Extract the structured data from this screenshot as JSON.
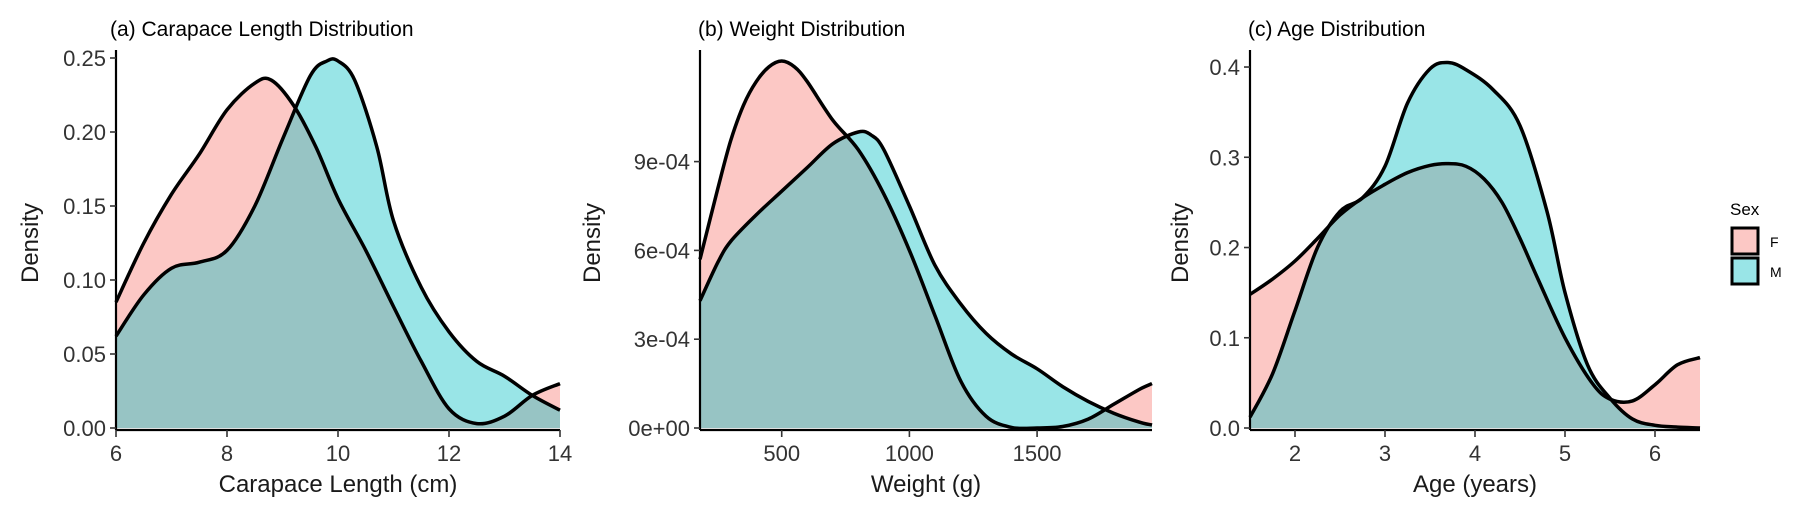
{
  "chart_data": [
    {
      "type": "area",
      "title": "(a) Carapace Length Distribution",
      "xlabel": "Carapace Length (cm)",
      "ylabel": "Density",
      "xlim": [
        6,
        14
      ],
      "ylim": [
        0,
        0.25
      ],
      "xticks": [
        6,
        8,
        10,
        12,
        14
      ],
      "xtick_labels": [
        "6",
        "8",
        "10",
        "12",
        "14"
      ],
      "yticks": [
        0,
        0.05,
        0.1,
        0.15,
        0.2,
        0.25
      ],
      "ytick_labels": [
        "0.00",
        "0.05",
        "0.10",
        "0.15",
        "0.20",
        "0.25"
      ],
      "series": [
        {
          "name": "F",
          "x": [
            6,
            6.5,
            7,
            7.5,
            8,
            8.5,
            8.8,
            9.2,
            9.6,
            10,
            10.5,
            11,
            11.5,
            12,
            12.5,
            13,
            13.5,
            14
          ],
          "values": [
            0.085,
            0.125,
            0.158,
            0.185,
            0.215,
            0.233,
            0.235,
            0.218,
            0.19,
            0.155,
            0.12,
            0.082,
            0.045,
            0.013,
            0.003,
            0.008,
            0.022,
            0.03
          ]
        },
        {
          "name": "M",
          "x": [
            6,
            6.5,
            7,
            7.5,
            8,
            8.5,
            9,
            9.5,
            9.8,
            10,
            10.3,
            10.7,
            11,
            11.5,
            12,
            12.5,
            13,
            13.5,
            14
          ],
          "values": [
            0.062,
            0.09,
            0.108,
            0.112,
            0.12,
            0.15,
            0.195,
            0.238,
            0.248,
            0.248,
            0.235,
            0.19,
            0.14,
            0.095,
            0.065,
            0.045,
            0.035,
            0.022,
            0.012
          ]
        }
      ]
    },
    {
      "type": "area",
      "title": "(b) Weight Distribution",
      "xlabel": "Weight (g)",
      "ylabel": "Density",
      "xlim": [
        180,
        1950
      ],
      "ylim": [
        0,
        0.00125
      ],
      "xticks": [
        500,
        1000,
        1500
      ],
      "xtick_labels": [
        "500",
        "1000",
        "1500"
      ],
      "yticks": [
        0,
        0.0003,
        0.0006,
        0.0009
      ],
      "ytick_labels": [
        "0e+00",
        "3e-04",
        "6e-04",
        "9e-04"
      ],
      "series": [
        {
          "name": "F",
          "x": [
            180,
            250,
            300,
            350,
            400,
            450,
            500,
            550,
            600,
            700,
            800,
            900,
            1000,
            1100,
            1200,
            1300,
            1400,
            1500,
            1600,
            1700,
            1800,
            1900,
            1950
          ],
          "values": [
            0.00057,
            0.00081,
            0.00097,
            0.00109,
            0.00117,
            0.00122,
            0.00124,
            0.00122,
            0.00117,
            0.00104,
            0.00094,
            0.00079,
            0.0006,
            0.00038,
            0.00016,
            4e-05,
            2e-06,
            0,
            5e-06,
            3e-05,
            8e-05,
            0.00013,
            0.00015
          ]
        },
        {
          "name": "M",
          "x": [
            180,
            250,
            300,
            400,
            500,
            600,
            700,
            800,
            850,
            900,
            1000,
            1100,
            1200,
            1300,
            1400,
            1500,
            1600,
            1700,
            1800,
            1900,
            1950
          ],
          "values": [
            0.00043,
            0.00056,
            0.00063,
            0.00072,
            0.0008,
            0.00088,
            0.00096,
            0.001,
            0.00099,
            0.00094,
            0.00075,
            0.00055,
            0.00042,
            0.00032,
            0.00025,
            0.0002,
            0.00014,
            9e-05,
            5e-05,
            2e-05,
            1e-05
          ]
        }
      ]
    },
    {
      "type": "area",
      "title": "(c) Age Distribution",
      "xlabel": "Age (years)",
      "ylabel": "Density",
      "xlim": [
        1.5,
        6.5
      ],
      "ylim": [
        0,
        0.41
      ],
      "xticks": [
        2,
        3,
        4,
        5,
        6
      ],
      "xtick_labels": [
        "2",
        "3",
        "4",
        "5",
        "6"
      ],
      "yticks": [
        0,
        0.1,
        0.2,
        0.3,
        0.4
      ],
      "ytick_labels": [
        "0.0",
        "0.1",
        "0.2",
        "0.3",
        "0.4"
      ],
      "series": [
        {
          "name": "F",
          "x": [
            1.5,
            1.75,
            2,
            2.25,
            2.5,
            2.75,
            3,
            3.25,
            3.5,
            3.7,
            3.9,
            4.1,
            4.3,
            4.5,
            4.7,
            5,
            5.3,
            5.5,
            5.75,
            6,
            6.25,
            6.5
          ],
          "values": [
            0.148,
            0.165,
            0.185,
            0.21,
            0.236,
            0.255,
            0.27,
            0.283,
            0.291,
            0.293,
            0.29,
            0.276,
            0.25,
            0.21,
            0.165,
            0.1,
            0.05,
            0.032,
            0.03,
            0.048,
            0.07,
            0.078
          ]
        },
        {
          "name": "M",
          "x": [
            1.5,
            1.75,
            2,
            2.25,
            2.5,
            2.75,
            3,
            3.25,
            3.5,
            3.7,
            3.9,
            4.2,
            4.5,
            4.8,
            5,
            5.25,
            5.5,
            5.75,
            6,
            6.25,
            6.5
          ],
          "values": [
            0.012,
            0.06,
            0.13,
            0.2,
            0.24,
            0.255,
            0.29,
            0.36,
            0.398,
            0.405,
            0.397,
            0.375,
            0.335,
            0.24,
            0.15,
            0.07,
            0.033,
            0.01,
            0.003,
            0.001,
            0
          ]
        }
      ]
    }
  ],
  "legend": {
    "title": "Sex",
    "position": "right",
    "items": [
      {
        "label": "F",
        "color": "#F8766D"
      },
      {
        "label": "M",
        "color": "#00BFC4"
      }
    ]
  },
  "colors": {
    "F": "#F8766D",
    "M": "#00BFC4",
    "outline": "#000000",
    "fill_alpha": 0.4
  }
}
